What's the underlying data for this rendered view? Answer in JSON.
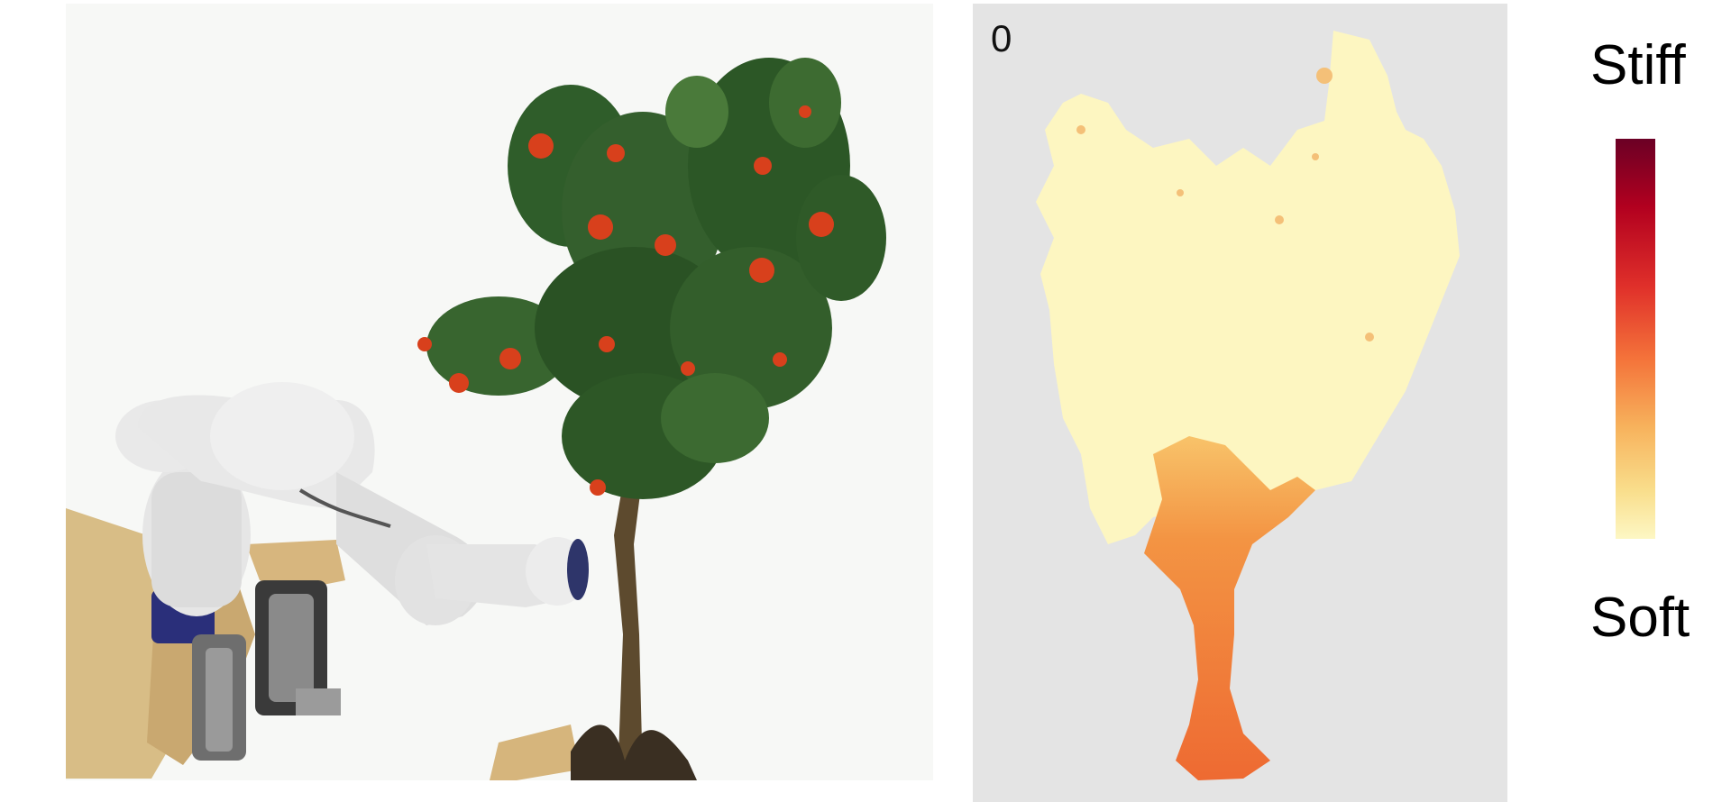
{
  "photo": {
    "description_icon": "robot-arm-and-orange-tree-image"
  },
  "stiffness_map": {
    "frame_label": "0"
  },
  "legend": {
    "top_label": "Stiff",
    "bottom_label": "Soft",
    "colors": [
      "#6b0025",
      "#b2001f",
      "#e0302a",
      "#f4733a",
      "#f7b25c",
      "#f9de8c",
      "#fdf7c4"
    ]
  }
}
